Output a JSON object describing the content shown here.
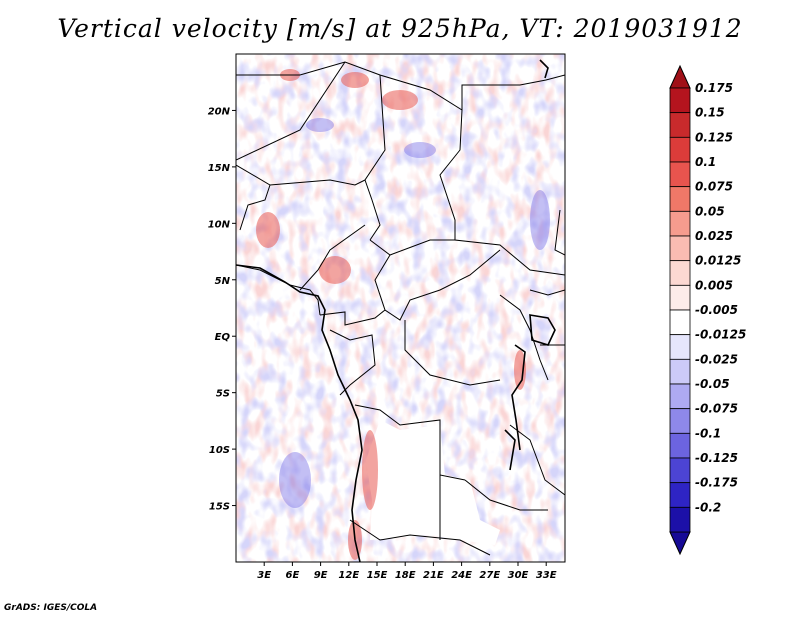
{
  "title": "Vertical velocity [m/s] at 925hPa, VT: 2019031912",
  "credit": "GrADS: IGES/COLA",
  "map": {
    "lon_range": [
      0,
      35
    ],
    "lat_range": [
      -20,
      25
    ],
    "lon_ticks": [
      {
        "value": 3,
        "label": "3E"
      },
      {
        "value": 6,
        "label": "6E"
      },
      {
        "value": 9,
        "label": "9E"
      },
      {
        "value": 12,
        "label": "12E"
      },
      {
        "value": 15,
        "label": "15E"
      },
      {
        "value": 18,
        "label": "18E"
      },
      {
        "value": 21,
        "label": "21E"
      },
      {
        "value": 24,
        "label": "24E"
      },
      {
        "value": 27,
        "label": "27E"
      },
      {
        "value": 30,
        "label": "30E"
      },
      {
        "value": 33,
        "label": "33E"
      }
    ],
    "lat_ticks": [
      {
        "value": 20,
        "label": "20N"
      },
      {
        "value": 15,
        "label": "15N"
      },
      {
        "value": 10,
        "label": "10N"
      },
      {
        "value": 5,
        "label": "5N"
      },
      {
        "value": 0,
        "label": "EQ"
      },
      {
        "value": -5,
        "label": "5S"
      },
      {
        "value": -10,
        "label": "10S"
      },
      {
        "value": -15,
        "label": "15S"
      }
    ]
  },
  "colorbar": {
    "levels": [
      {
        "label": "0.175",
        "color": "#b4141e"
      },
      {
        "label": "0.15",
        "color": "#c82a2c"
      },
      {
        "label": "0.125",
        "color": "#dc3c3a"
      },
      {
        "label": "0.1",
        "color": "#e8544e"
      },
      {
        "label": "0.075",
        "color": "#f07868"
      },
      {
        "label": "0.05",
        "color": "#f69c8e"
      },
      {
        "label": "0.025",
        "color": "#fabcb2"
      },
      {
        "label": "0.0125",
        "color": "#fcd8d2"
      },
      {
        "label": "0.005",
        "color": "#fdecea"
      },
      {
        "label": "-0.005",
        "color": "#ffffff"
      },
      {
        "label": "-0.0125",
        "color": "#e6e6fc"
      },
      {
        "label": "-0.025",
        "color": "#cccaf8"
      },
      {
        "label": "-0.05",
        "color": "#aeaaf2"
      },
      {
        "label": "-0.075",
        "color": "#8e88ea"
      },
      {
        "label": "-0.1",
        "color": "#6c64e0"
      },
      {
        "label": "-0.125",
        "color": "#4c44d4"
      },
      {
        "label": "-0.175",
        "color": "#2e24c4"
      },
      {
        "label": "-0.2",
        "color": "#1c10a8"
      }
    ],
    "top_color": "#a01018",
    "bottom_color": "#160a96"
  }
}
